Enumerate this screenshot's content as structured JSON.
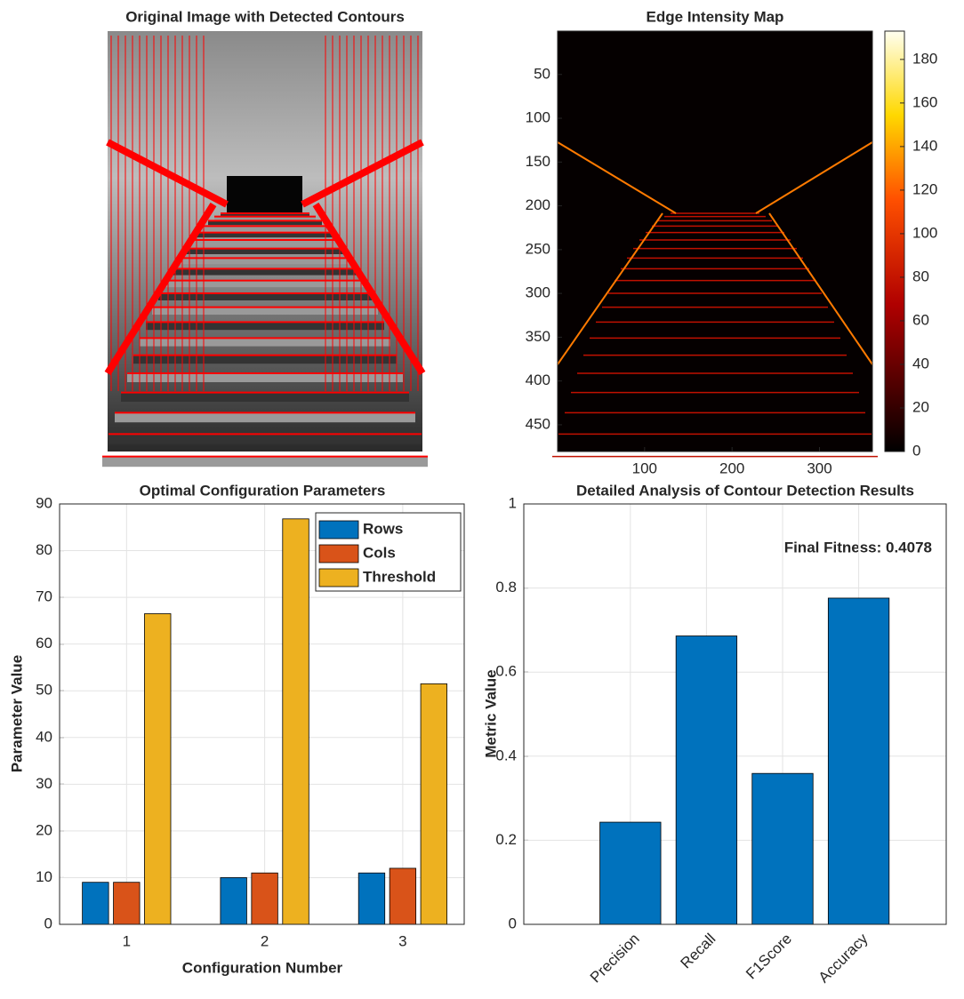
{
  "chart_data": [
    {
      "type": "image",
      "title": "Original Image with Detected Contours"
    },
    {
      "type": "heatmap",
      "title": "Edge Intensity Map",
      "xlim": [
        0.5,
        360.5
      ],
      "xticks": [
        100,
        200,
        300
      ],
      "ylim": [
        0.5,
        480.5
      ],
      "yticks": [
        50,
        100,
        150,
        200,
        250,
        300,
        350,
        400,
        450
      ],
      "colorbar": {
        "lim": [
          0,
          193
        ],
        "ticks": [
          0,
          20,
          40,
          60,
          80,
          100,
          120,
          140,
          160,
          180
        ]
      }
    },
    {
      "type": "bar",
      "title": "Optimal Configuration Parameters",
      "xlabel": "Configuration Number",
      "ylabel": "Parameter Value",
      "categories": [
        "1",
        "2",
        "3"
      ],
      "series": [
        {
          "name": "Rows",
          "color": "#0072bd",
          "values": [
            9,
            10,
            11
          ]
        },
        {
          "name": "Cols",
          "color": "#d95319",
          "values": [
            9,
            11,
            12
          ]
        },
        {
          "name": "Threshold",
          "color": "#edb120",
          "values": [
            66.5,
            86.8,
            51.5
          ]
        }
      ],
      "ylim": [
        0,
        90
      ],
      "yticks": [
        0,
        10,
        20,
        30,
        40,
        50,
        60,
        70,
        80,
        90
      ],
      "grid": true,
      "legend": "upper-right"
    },
    {
      "type": "bar",
      "title": "Detailed Analysis of Contour Detection Results",
      "ylabel": "Metric Value",
      "categories": [
        "Precision",
        "Recall",
        "F1Score",
        "Accuracy"
      ],
      "values": [
        0.243,
        0.686,
        0.359,
        0.776
      ],
      "color": "#0072bd",
      "ylim": [
        0,
        1
      ],
      "yticks": [
        0,
        0.2,
        0.4,
        0.6,
        0.8,
        1
      ],
      "grid": true,
      "annotation": "Final Fitness: 0.4078"
    }
  ]
}
